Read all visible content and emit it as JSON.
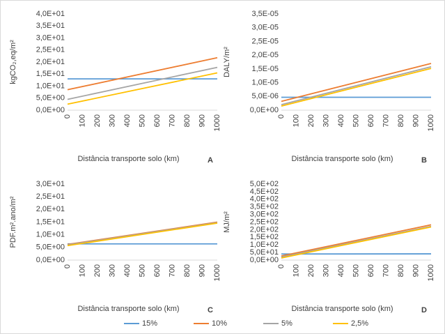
{
  "chart_data": [
    {
      "type": "line",
      "panel": "A",
      "ylabel": "kgCO₂,eq/m²",
      "xlabel": "Distância transporte solo (km)",
      "x": [
        0,
        1000
      ],
      "xlim": [
        0,
        1000
      ],
      "xticks": [
        0,
        100,
        200,
        300,
        400,
        500,
        600,
        700,
        800,
        900,
        1000
      ],
      "ylim": [
        0,
        40
      ],
      "yticks": [
        {
          "value": 0,
          "label": "0,0E+00"
        },
        {
          "value": 5,
          "label": "5,0E+00"
        },
        {
          "value": 10,
          "label": "1,0E+01"
        },
        {
          "value": 15,
          "label": "1,5E+01"
        },
        {
          "value": 20,
          "label": "2,0E+01"
        },
        {
          "value": 25,
          "label": "2,5E+01"
        },
        {
          "value": 30,
          "label": "3,0E+01"
        },
        {
          "value": 35,
          "label": "3,5E+01"
        },
        {
          "value": 40,
          "label": "4,0E+01"
        }
      ],
      "series": [
        {
          "name": "15%",
          "color": "#5b9bd5",
          "values": [
            13,
            13
          ]
        },
        {
          "name": "10%",
          "color": "#ed7d31",
          "values": [
            8.5,
            21.8
          ]
        },
        {
          "name": "5%",
          "color": "#a5a5a5",
          "values": [
            4.5,
            17.8
          ]
        },
        {
          "name": "2,5%",
          "color": "#ffc000",
          "values": [
            2.5,
            15.5
          ]
        }
      ]
    },
    {
      "type": "line",
      "panel": "B",
      "ylabel": "DALY/m²",
      "xlabel": "Distância transporte solo (km)",
      "x": [
        0,
        1000
      ],
      "xlim": [
        0,
        1000
      ],
      "xticks": [
        0,
        100,
        200,
        300,
        400,
        500,
        600,
        700,
        800,
        900,
        1000
      ],
      "ylim": [
        0,
        3.5e-05
      ],
      "yticks": [
        {
          "value": 0,
          "label": "0,0E+00"
        },
        {
          "value": 5e-06,
          "label": "5,0E-06"
        },
        {
          "value": 1e-05,
          "label": "1,0E-05"
        },
        {
          "value": 1.5e-05,
          "label": "1,5E-05"
        },
        {
          "value": 2e-05,
          "label": "2,0E-05"
        },
        {
          "value": 2.5e-05,
          "label": "2,5E-05"
        },
        {
          "value": 3e-05,
          "label": "3,0E-05"
        },
        {
          "value": 3.5e-05,
          "label": "3,5E-05"
        }
      ],
      "series": [
        {
          "name": "15%",
          "color": "#5b9bd5",
          "values": [
            4.7e-06,
            4.7e-06
          ]
        },
        {
          "name": "10%",
          "color": "#ed7d31",
          "values": [
            3.2e-06,
            1.7e-05
          ]
        },
        {
          "name": "5%",
          "color": "#a5a5a5",
          "values": [
            2e-06,
            1.58e-05
          ]
        },
        {
          "name": "2,5%",
          "color": "#ffc000",
          "values": [
            1.5e-06,
            1.52e-05
          ]
        }
      ]
    },
    {
      "type": "line",
      "panel": "C",
      "ylabel": "PDF.m².ano/m²",
      "xlabel": "Distância transporte solo (km)",
      "x": [
        0,
        1000
      ],
      "xlim": [
        0,
        1000
      ],
      "xticks": [
        0,
        100,
        200,
        300,
        400,
        500,
        600,
        700,
        800,
        900,
        1000
      ],
      "ylim": [
        0,
        30
      ],
      "yticks": [
        {
          "value": 0,
          "label": "0,0E+00"
        },
        {
          "value": 5,
          "label": "5,0E+00"
        },
        {
          "value": 10,
          "label": "1,0E+01"
        },
        {
          "value": 15,
          "label": "1,5E+01"
        },
        {
          "value": 20,
          "label": "2,0E+01"
        },
        {
          "value": 25,
          "label": "2,5E+01"
        },
        {
          "value": 30,
          "label": "3,0E+01"
        }
      ],
      "series": [
        {
          "name": "15%",
          "color": "#5b9bd5",
          "values": [
            6.4,
            6.4
          ]
        },
        {
          "name": "10%",
          "color": "#ed7d31",
          "values": [
            6.2,
            15.0
          ]
        },
        {
          "name": "5%",
          "color": "#a5a5a5",
          "values": [
            6.0,
            14.8
          ]
        },
        {
          "name": "2,5%",
          "color": "#ffc000",
          "values": [
            5.7,
            14.6
          ]
        }
      ]
    },
    {
      "type": "line",
      "panel": "D",
      "ylabel": "MJ/m²",
      "xlabel": "Distância transporte solo (km)",
      "x": [
        0,
        1000
      ],
      "xlim": [
        0,
        1000
      ],
      "xticks": [
        0,
        100,
        200,
        300,
        400,
        500,
        600,
        700,
        800,
        900,
        1000
      ],
      "ylim": [
        0,
        500
      ],
      "yticks": [
        {
          "value": 0,
          "label": "0,0E+00"
        },
        {
          "value": 50,
          "label": "5,0E+01"
        },
        {
          "value": 100,
          "label": "1,0E+02"
        },
        {
          "value": 150,
          "label": "1,5E+02"
        },
        {
          "value": 200,
          "label": "2,0E+02"
        },
        {
          "value": 250,
          "label": "2,5E+02"
        },
        {
          "value": 300,
          "label": "3,0E+02"
        },
        {
          "value": 350,
          "label": "3,5E+02"
        },
        {
          "value": 400,
          "label": "4,0E+02"
        },
        {
          "value": 450,
          "label": "4,5E+02"
        },
        {
          "value": 500,
          "label": "5,0E+02"
        }
      ],
      "series": [
        {
          "name": "15%",
          "color": "#5b9bd5",
          "values": [
            40,
            41
          ]
        },
        {
          "name": "10%",
          "color": "#ed7d31",
          "values": [
            27,
            232
          ]
        },
        {
          "name": "5%",
          "color": "#a5a5a5",
          "values": [
            20,
            222
          ]
        },
        {
          "name": "2,5%",
          "color": "#ffc000",
          "values": [
            14,
            218
          ]
        }
      ]
    }
  ]
}
